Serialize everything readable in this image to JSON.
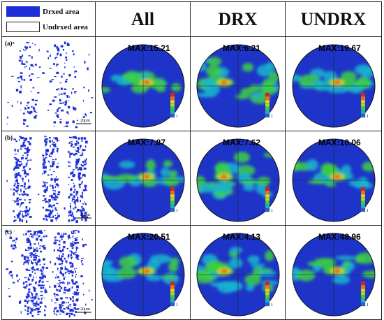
{
  "legend": {
    "drxed_label": "Drxed area",
    "undrxed_label": "Undrxed area",
    "drxed_color": "#1d2ed8",
    "undrxed_color": "#ffffff"
  },
  "columns": [
    "All",
    "DRX",
    "UNDRX"
  ],
  "rows": [
    {
      "letter": "(a)",
      "scale": "20μm",
      "max": [
        "MAX:15.21",
        "MAX:6.21",
        "MAX:19.67"
      ]
    },
    {
      "letter": "(b)",
      "scale": "20μm",
      "max": [
        "MAX:7.87",
        "MAX:7.62",
        "MAX:10.06"
      ]
    },
    {
      "letter": "(c)",
      "scale": "20μm",
      "max": [
        "MAX:20.51",
        "MAX:4.13",
        "MAX:48.96"
      ]
    }
  ],
  "colorbar_min_label": "1",
  "pole_figure_colors": {
    "background": "#1e34c8",
    "low": "#18b4cf",
    "mid": "#3ccf44",
    "high": "#f0d020",
    "peak": "#e02010"
  }
}
